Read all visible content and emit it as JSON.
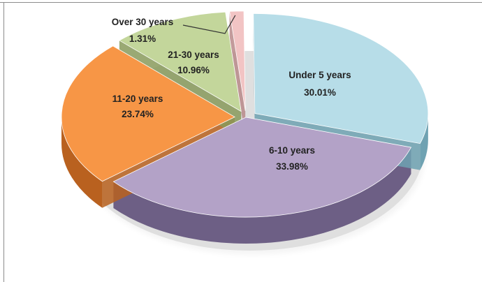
{
  "chart_data": {
    "type": "pie",
    "title": "",
    "categories": [
      "Under 5 years",
      "6-10 years",
      "11-20 years",
      "21-30 years",
      "Over 30 years"
    ],
    "values": [
      30.01,
      33.98,
      23.74,
      10.96,
      1.31
    ],
    "value_labels": [
      "30.01%",
      "33.98%",
      "23.74%",
      "10.96%",
      "1.31%"
    ],
    "colors": [
      "#b7dde8",
      "#b3a2c7",
      "#f79646",
      "#c3d69b",
      "#f2c4c4"
    ],
    "style": "3d-exploded",
    "legend": "none"
  }
}
